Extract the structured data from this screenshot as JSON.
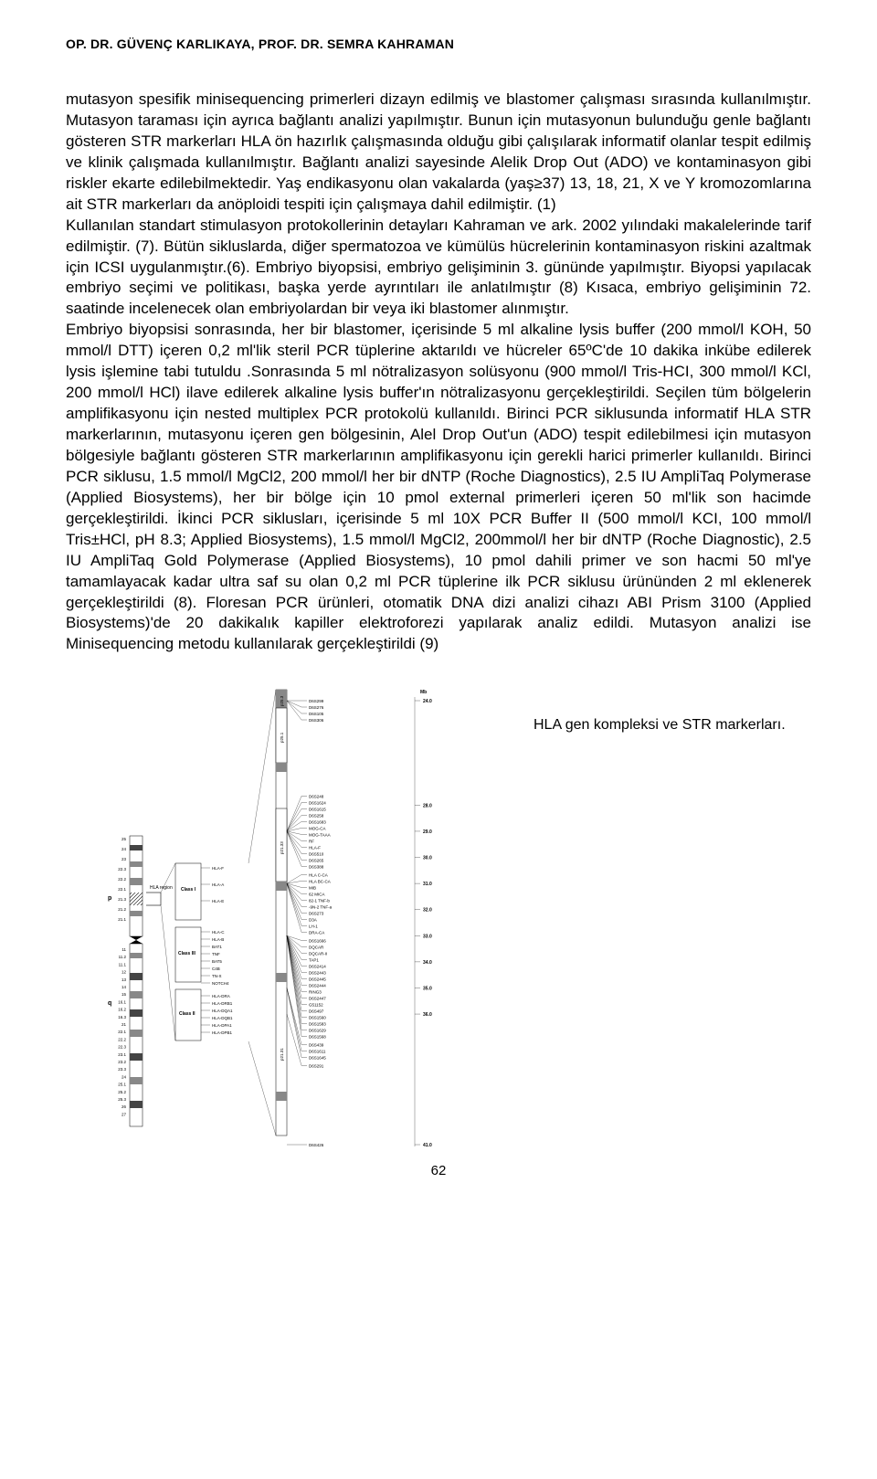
{
  "header": {
    "authors": "OP. DR. GÜVENÇ KARLIKAYA, PROF. DR. SEMRA KAHRAMAN"
  },
  "body": {
    "paragraph": "mutasyon spesifik minisequencing primerleri dizayn edilmiş ve blastomer çalışması sırasında kullanılmıştır. Mutasyon taraması için ayrıca bağlantı analizi yapılmıştır. Bunun için mutasyonun bulunduğu genle bağlantı gösteren STR markerları HLA ön hazırlık çalışmasında olduğu gibi çalışılarak informatif olanlar tespit edilmiş ve klinik çalışmada kullanılmıştır. Bağlantı analizi sayesinde Alelik Drop Out (ADO) ve kontaminasyon gibi riskler ekarte edilebilmektedir. Yaş endikasyonu olan vakalarda (yaş≥37) 13, 18, 21, X ve Y kromozomlarına ait STR markerları da anöploidi tespiti için çalışmaya dahil edilmiştir. (1)\nKullanılan standart stimulasyon protokollerinin detayları Kahraman ve ark. 2002 yılındaki makalelerinde tarif edilmiştir. (7). Bütün sikluslarda, diğer spermatozoa ve kümülüs hücrelerinin kontaminasyon riskini azaltmak için ICSI uygulanmıştır.(6). Embriyo biyopsisi, embriyo gelişiminin 3. gününde yapılmıştır. Biyopsi yapılacak embriyo seçimi ve politikası, başka yerde ayrıntıları ile anlatılmıştır (8) Kısaca, embriyo gelişiminin 72. saatinde incelenecek olan embriyolardan bir veya iki blastomer alınmıştır.\nEmbriyo biyopsisi sonrasında, her bir blastomer, içerisinde 5 ml alkaline lysis buffer (200 mmol/l KOH, 50 mmol/l DTT) içeren 0,2 ml'lik steril PCR tüplerine aktarıldı ve hücreler 65ºC'de 10 dakika inkübe edilerek lysis işlemine tabi tutuldu .Sonrasında 5 ml nötralizasyon solüsyonu (900 mmol/l Tris-HCI, 300 mmol/l KCl, 200 mmol/l HCl) ilave edilerek alkaline lysis buffer'ın nötralizasyonu gerçekleştirildi. Seçilen tüm bölgelerin amplifikasyonu için nested multiplex PCR protokolü kullanıldı. Birinci PCR siklusunda informatif HLA STR markerlarının, mutasyonu içeren gen bölgesinin, Alel Drop Out'un (ADO) tespit edilebilmesi için mutasyon bölgesiyle bağlantı gösteren STR markerlarının amplifikasyonu için gerekli harici primerler kullanıldı. Birinci PCR siklusu, 1.5 mmol/l MgCl2, 200 mmol/l her bir dNTP (Roche Diagnostics), 2.5 IU AmpliTaq Polymerase (Applied Biosystems), her bir bölge için 10 pmol external primerleri içeren 50 ml'lik son hacimde gerçekleştirildi. İkinci PCR siklusları, içerisinde 5 ml 10X PCR Buffer II (500 mmol/l KCI, 100 mmol/l Tris±HCl, pH 8.3; Applied Biosystems), 1.5 mmol/l MgCl2, 200mmol/l her bir dNTP (Roche Diagnostic), 2.5 IU AmpliTaq Gold Polymerase (Applied Biosystems), 10 pmol dahili primer ve son hacmi 50 ml'ye tamamlayacak kadar ultra saf su olan 0,2 ml PCR tüplerine ilk PCR siklusu ürününden 2 ml eklenerek gerçekleştirildi (8). Floresan PCR ürünleri, otomatik DNA dizi analizi cihazı ABI Prism 3100 (Applied Biosystems)'de 20 dakikalık kapiller elektroforezi yapılarak analiz edildi. Mutasyon analizi ise Minisequencing metodu kullanılarak gerçekleştirildi (9)"
  },
  "figure": {
    "caption": "HLA gen kompleksi ve STR markerları.",
    "hla_region_label": "HLA region",
    "p_label": "p",
    "q_label": "q",
    "mb_label": "Mb",
    "class_labels": [
      "Class I",
      "Class III",
      "Class II"
    ],
    "chrom_ticks_p": [
      "25",
      "24",
      "23",
      "22.3",
      "22.2",
      "22.1",
      "21.3",
      "21.2",
      "21.1"
    ],
    "chrom_ticks_q": [
      "11",
      "11.2",
      "11.1",
      "12",
      "13",
      "14",
      "15",
      "16.1",
      "16.2",
      "16.3",
      "21",
      "22.1",
      "22.2",
      "22.3",
      "23.1",
      "23.2",
      "23.3",
      "24",
      "25.1",
      "25.2",
      "25.3",
      "26",
      "27"
    ],
    "hla_map_p": [
      "p25.3",
      "p25.1",
      "p21.33",
      "p21.31"
    ],
    "genes_classI": [
      "HLA-F",
      "HLA-A",
      "HLA-E"
    ],
    "genes_classIII": [
      "HLA-C",
      "HLA-B",
      "BAT1",
      "TNF",
      "BAT5",
      "C4B",
      "TN-X",
      "NOTCH4"
    ],
    "genes_classII": [
      "HLA-DRA",
      "HLA-DRB1",
      "HLA-DQA1",
      "HLA-DQB1",
      "HLA-DPA1",
      "HLA-DPB1"
    ],
    "mb_scale": [
      {
        "mb": "24.0",
        "markers": [
          "D6S299",
          "D6S276",
          "D6S105",
          "D6S306"
        ]
      },
      {
        "mb": "28.0",
        "markers": []
      },
      {
        "mb": "29.0",
        "markers": [
          "D6S248",
          "D6S1624",
          "D6S1615",
          "D6S258",
          "D6S1683",
          "MOG-CA",
          "MOG-TAAA",
          "RF",
          "HLA-F",
          "D6S510",
          "D6S265",
          "D6S388"
        ]
      },
      {
        "mb": "30.0",
        "markers": []
      },
      {
        "mb": "31.0",
        "markers": [
          "HLA C-CA",
          "HLA BC-CA",
          "MIB",
          "62  MICA",
          "82-1  TNF-b",
          "-9N-2  TNF-a",
          "D6S273",
          "D3A",
          "LH-1",
          "DRA-CA"
        ]
      },
      {
        "mb": "32.0",
        "markers": []
      },
      {
        "mb": "33.0",
        "markers": [
          "D6S1666",
          "DQCAR",
          "DQCAR-II",
          "TAP1",
          "D6S2414",
          "D6S2443",
          "D6S2445",
          "D6S2444",
          "RING3",
          "D6S2447",
          "G51152",
          "D6S497",
          "D6S1560",
          "D6S1583",
          "D6S1629",
          "D6S1568"
        ]
      },
      {
        "mb": "34.0",
        "markers": []
      },
      {
        "mb": "35.0",
        "markers": [
          "D6S439",
          "D6S1611",
          "D6S1645"
        ]
      },
      {
        "mb": "36.0",
        "markers": [
          "D6S291"
        ]
      },
      {
        "mb": "41.0",
        "markers": [
          "D6S426"
        ]
      }
    ]
  },
  "page_number": "62"
}
